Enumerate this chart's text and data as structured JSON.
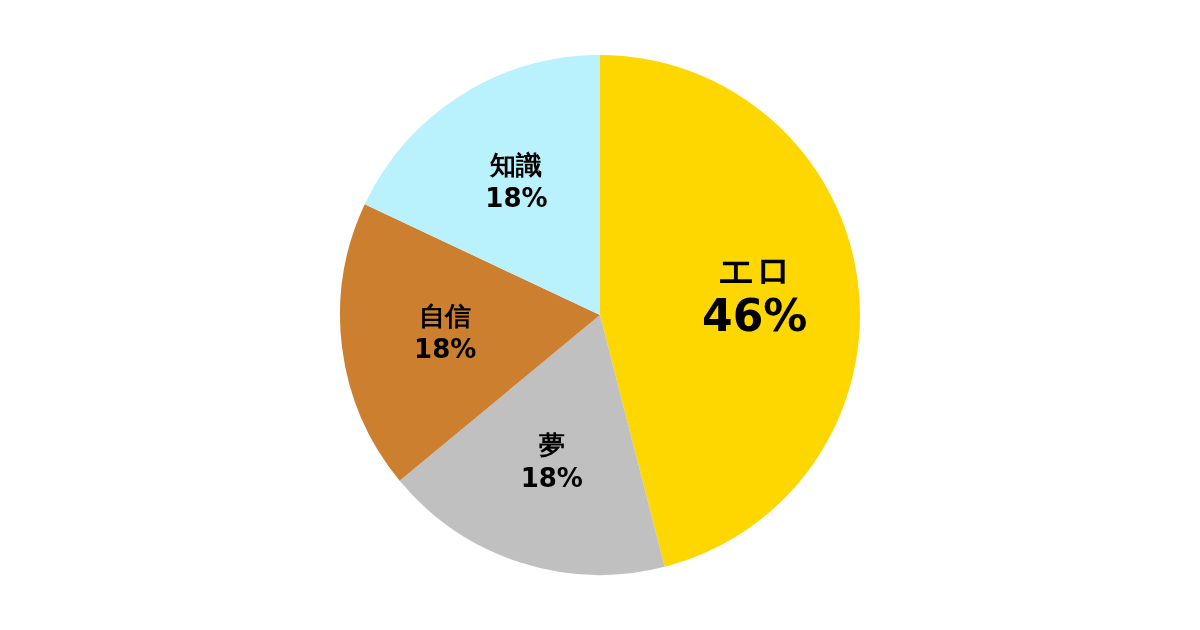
{
  "chart_data": {
    "type": "pie",
    "categories": [
      "エロ",
      "夢",
      "自信",
      "知識"
    ],
    "values": [
      46,
      18,
      18,
      18
    ],
    "value_labels": [
      "46%",
      "18%",
      "18%",
      "18%"
    ],
    "colors": [
      "#fed700",
      "#c0c0c0",
      "#cd7f30",
      "#b9f1fd"
    ],
    "legend": false
  }
}
